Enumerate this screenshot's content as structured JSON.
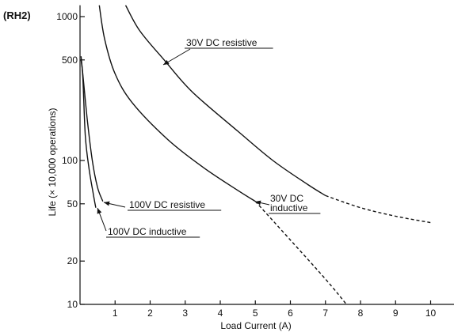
{
  "chart_data": {
    "type": "line",
    "panel_label": "(RH2)",
    "xlabel": "Load Current (A)",
    "ylabel": "Life (× 10,000 operations)",
    "xlim": [
      0,
      10.7
    ],
    "ylim": [
      10,
      1200
    ],
    "y_scale": "log",
    "x_ticks": [
      1,
      2,
      3,
      4,
      5,
      6,
      7,
      8,
      9,
      10
    ],
    "y_ticks": [
      10,
      20,
      50,
      100,
      500,
      1000
    ],
    "grid": false,
    "series": [
      {
        "name": "30V DC resistive",
        "solid": [
          [
            1.3,
            1200
          ],
          [
            1.7,
            800
          ],
          [
            2.4,
            500
          ],
          [
            3.2,
            300
          ],
          [
            4.5,
            160
          ],
          [
            5.5,
            100
          ],
          [
            6.5,
            68
          ],
          [
            7.0,
            57
          ]
        ],
        "dashed": [
          [
            7.0,
            57
          ],
          [
            8.0,
            47
          ],
          [
            9.0,
            41
          ],
          [
            10.0,
            37
          ]
        ]
      },
      {
        "name": "30V DC inductive",
        "solid": [
          [
            0.55,
            1200
          ],
          [
            0.7,
            700
          ],
          [
            1.0,
            400
          ],
          [
            1.5,
            250
          ],
          [
            2.5,
            140
          ],
          [
            3.5,
            90
          ],
          [
            4.5,
            62
          ],
          [
            5.0,
            52
          ]
        ],
        "dashed": [
          [
            5.0,
            52
          ],
          [
            6.0,
            28
          ],
          [
            7.0,
            15
          ],
          [
            7.6,
            10
          ]
        ]
      },
      {
        "name": "100V DC resistive",
        "solid": [
          [
            0.03,
            530
          ],
          [
            0.08,
            400
          ],
          [
            0.2,
            200
          ],
          [
            0.35,
            100
          ],
          [
            0.5,
            65
          ],
          [
            0.65,
            52
          ]
        ],
        "dashed": []
      },
      {
        "name": "100V DC inductive",
        "solid": [
          [
            0.03,
            500
          ],
          [
            0.08,
            380
          ],
          [
            0.15,
            150
          ],
          [
            0.25,
            90
          ],
          [
            0.37,
            60
          ],
          [
            0.45,
            47
          ]
        ],
        "dashed": []
      }
    ],
    "labels": [
      {
        "text": "30V DC resistive",
        "lines": [
          "30V DC resistive"
        ],
        "underline": true
      },
      {
        "text": "30V DC inductive",
        "lines": [
          "30V DC",
          "inductive"
        ],
        "underline": true
      },
      {
        "text": "100V DC resistive",
        "lines": [
          "100V DC resistive"
        ],
        "underline": true
      },
      {
        "text": "100V DC inductive",
        "lines": [
          "100V DC inductive"
        ],
        "underline": true
      }
    ]
  }
}
